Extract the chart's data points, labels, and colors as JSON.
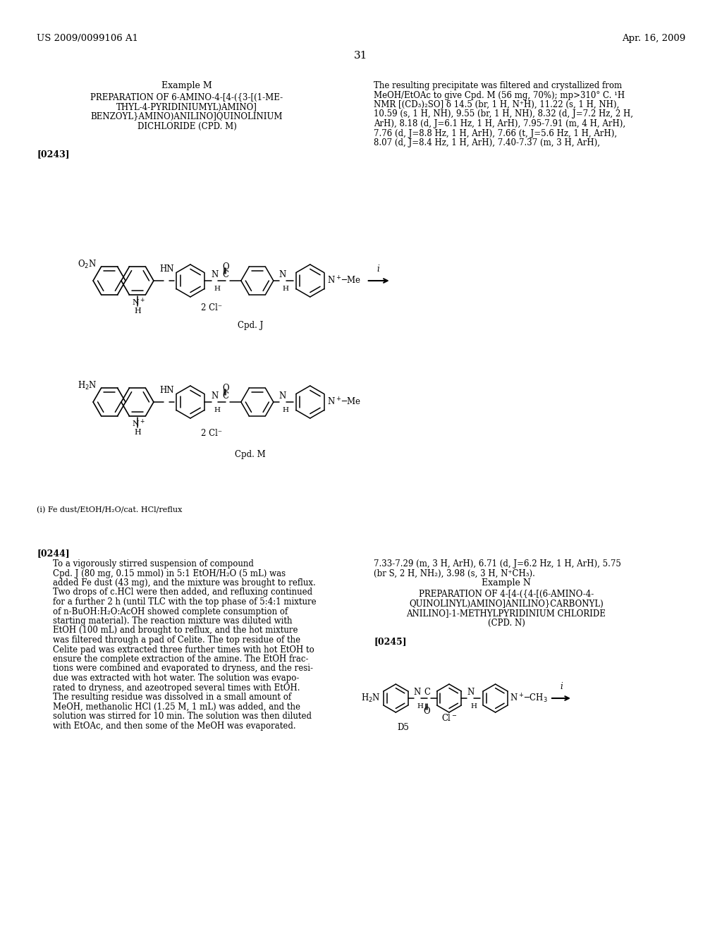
{
  "background_color": "#ffffff",
  "page_number": "31",
  "header_left": "US 2009/0099106 A1",
  "header_right": "Apr. 16, 2009",
  "example_m_title": "Example M",
  "example_m_subtitle_lines": [
    "PREPARATION OF 6-AMINO-4-[4-({3-[(1-ME-",
    "THYL-4-PYRIDINIUMYL)AMINO]",
    "BENZOYL}AMINO)ANILINO]QUINOLINIUM",
    "DICHLORIDE (CPD. M)"
  ],
  "paragraph_0243": "[0243]",
  "right_text_lines": [
    "The resulting precipitate was filtered and crystallized from",
    "MeOH/EtOAc to give Cpd. M (56 mg, 70%); mp>310° C. ¹H",
    "NMR [(CD₃)₂SO] δ 14.5 (br, 1 H, N⁺H), 11.22 (s, 1 H, NH),",
    "10.59 (s, 1 H, NH), 9.55 (br, 1 H, NH), 8.32 (d, J=7.2 Hz, 2 H,",
    "ArH), 8.18 (d, J=6.1 Hz, 1 H, ArH), 7.95-7.91 (m, 4 H, ArH),",
    "7.76 (d, J=8.8 Hz, 1 H, ArH), 7.66 (t, J=5.6 Hz, 1 H, ArH),",
    "8.07 (d, J=8.4 Hz, 1 H, ArH), 7.40-7.37 (m, 3 H, ArH),"
  ],
  "cpd_j_label": "Cpd. J",
  "cpd_m_label": "Cpd. M",
  "footnote": "(i) Fe dust/EtOH/H₂O/cat. HCl/reflux",
  "paragraph_0244_title": "[0244]",
  "paragraph_0244_text_col1": [
    "To a vigorously stirred suspension of compound",
    "Cpd. J (80 mg, 0.15 mmol) in 5:1 EtOH/H₂O (5 mL) was",
    "added Fe dust (43 mg), and the mixture was brought to reflux.",
    "Two drops of c.HCl were then added, and refluxing continued",
    "for a further 2 h (until TLC with the top phase of 5:4:1 mixture",
    "of n-BuOH:H₂O:AcOH showed complete consumption of",
    "starting material). The reaction mixture was diluted with",
    "EtOH (100 mL) and brought to reflux, and the hot mixture",
    "was filtered through a pad of Celite. The top residue of the",
    "Celite pad was extracted three further times with hot EtOH to",
    "ensure the complete extraction of the amine. The EtOH frac-",
    "tions were combined and evaporated to dryness, and the resi-",
    "due was extracted with hot water. The solution was evapo-",
    "rated to dryness, and azeotroped several times with EtOH.",
    "The resulting residue was dissolved in a small amount of",
    "MeOH, methanolic HCl (1.25 M, 1 mL) was added, and the",
    "solution was stirred for 10 min. The solution was then diluted",
    "with EtOAc, and then some of the MeOH was evaporated."
  ],
  "paragraph_0244_text_col2": [
    "7.33-7.29 (m, 3 H, ArH), 6.71 (d, J=6.2 Hz, 1 H, ArH), 5.75",
    "(br S, 2 H, NH₂), 3.98 (s, 3 H, N⁺CH₃)."
  ],
  "example_n_title": "Example N",
  "example_n_subtitle_lines": [
    "PREPARATION OF 4-[4-({4-[(6-AMINO-4-",
    "QUINOLINYL)AMINO]ANILINO}CARBONYL)",
    "ANILINO]-1-METHYLPYRIDINIUM CHLORIDE",
    "(CPD. N)"
  ],
  "paragraph_0245": "[0245]",
  "cpd_d5_label": "D5"
}
